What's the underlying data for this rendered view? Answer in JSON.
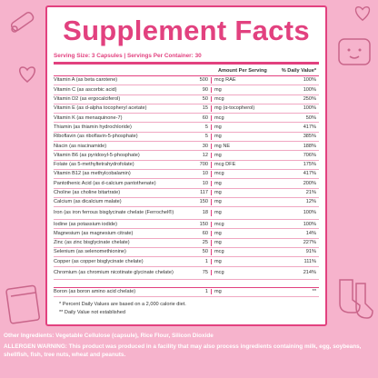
{
  "title": "Supplement Facts",
  "serving": "Serving Size: 3 Capsules | Servings Per Container: 30",
  "header": {
    "amount": "Amount Per Serving",
    "dv": "% Daily Value*"
  },
  "rows": [
    {
      "name": "Vitamin A (as beta carotene)",
      "amount": "500",
      "unit": "mcg RAE",
      "dv": "100%"
    },
    {
      "name": "Vitamin C (as ascorbic acid)",
      "amount": "90",
      "unit": "mg",
      "dv": "100%"
    },
    {
      "name": "Vitamin D2 (as ergocalciferol)",
      "amount": "50",
      "unit": "mcg",
      "dv": "250%"
    },
    {
      "name": "Vitamin E (as d-alpha tocopheryl acetate)",
      "amount": "15",
      "unit": "mg (α-tocopherol)",
      "dv": "100%"
    },
    {
      "name": "Vitamin K (as menaquinone-7)",
      "amount": "60",
      "unit": "mcg",
      "dv": "50%"
    },
    {
      "name": "Thiamin (as thiamin hydrochloride)",
      "amount": "5",
      "unit": "mg",
      "dv": "417%"
    },
    {
      "name": "Riboflavin (as riboflavin-5-phosphate)",
      "amount": "5",
      "unit": "mg",
      "dv": "385%"
    },
    {
      "name": "Niacin (as niacinamide)",
      "amount": "30",
      "unit": "mg NE",
      "dv": "188%"
    },
    {
      "name": "Vitamin B6 (as pyridoxyl-5-phosphate)",
      "amount": "12",
      "unit": "mg",
      "dv": "706%"
    },
    {
      "name": "Folate (as 5-methyltetrahydrofolate)",
      "amount": "700",
      "unit": "mcg DFE",
      "dv": "175%"
    },
    {
      "name": "Vitamin B12 (as methylcobalamin)",
      "amount": "10",
      "unit": "mcg",
      "dv": "417%"
    },
    {
      "name": "Pantothenic Acid (as d-calcium pantothenate)",
      "amount": "10",
      "unit": "mg",
      "dv": "200%"
    },
    {
      "name": "Choline (as choline bitartrate)",
      "amount": "117",
      "unit": "mg",
      "dv": "21%"
    },
    {
      "name": "Calcium (as dicalcium malate)",
      "amount": "150",
      "unit": "mg",
      "dv": "12%"
    },
    {
      "name": "Iron (as iron ferrous bisglycinate chelate (Ferrochel®)",
      "amount": "18",
      "unit": "mg",
      "dv": "100%"
    },
    {
      "name": "Iodine (as potassium iodide)",
      "amount": "150",
      "unit": "mcg",
      "dv": "100%"
    },
    {
      "name": "Magnesium (as magnesium citrate)",
      "amount": "60",
      "unit": "mg",
      "dv": "14%"
    },
    {
      "name": "Zinc (as zinc bisglycinate chelate)",
      "amount": "25",
      "unit": "mg",
      "dv": "227%"
    },
    {
      "name": "Selenium (as selenomethionine)",
      "amount": "50",
      "unit": "mcg",
      "dv": "91%"
    },
    {
      "name": "Copper (as copper bisglycinate chelate)",
      "amount": "1",
      "unit": "mg",
      "dv": "111%"
    },
    {
      "name": "Chromium (as chromium nicotinate glycinate chelate)",
      "amount": "75",
      "unit": "mcg",
      "dv": "214%"
    }
  ],
  "boron": {
    "name": "Boron (as boron amino acid chelate)",
    "amount": "1",
    "unit": "mg",
    "dv": "**"
  },
  "footnote1": "* Percent Daily Values are based on a 2,000 calorie diet.",
  "footnote2": "** Daily Value not established",
  "other_ingredients": "Other Ingredients: Vegetable Cellulose (capsule), Rice Flour, Silicon Dioxide",
  "allergen": "ALLERGEN WARNING: This product was produced in a facility that may also process ingredients containing milk, egg, soybeans, shellfish, fish, tree nuts, wheat and peanuts.",
  "doodles": {
    "thermometer": "thermometer-icon",
    "heart": "heart-icon",
    "baby": "baby-icon",
    "calendar": "calendar-icon",
    "booties": "booties-icon"
  }
}
